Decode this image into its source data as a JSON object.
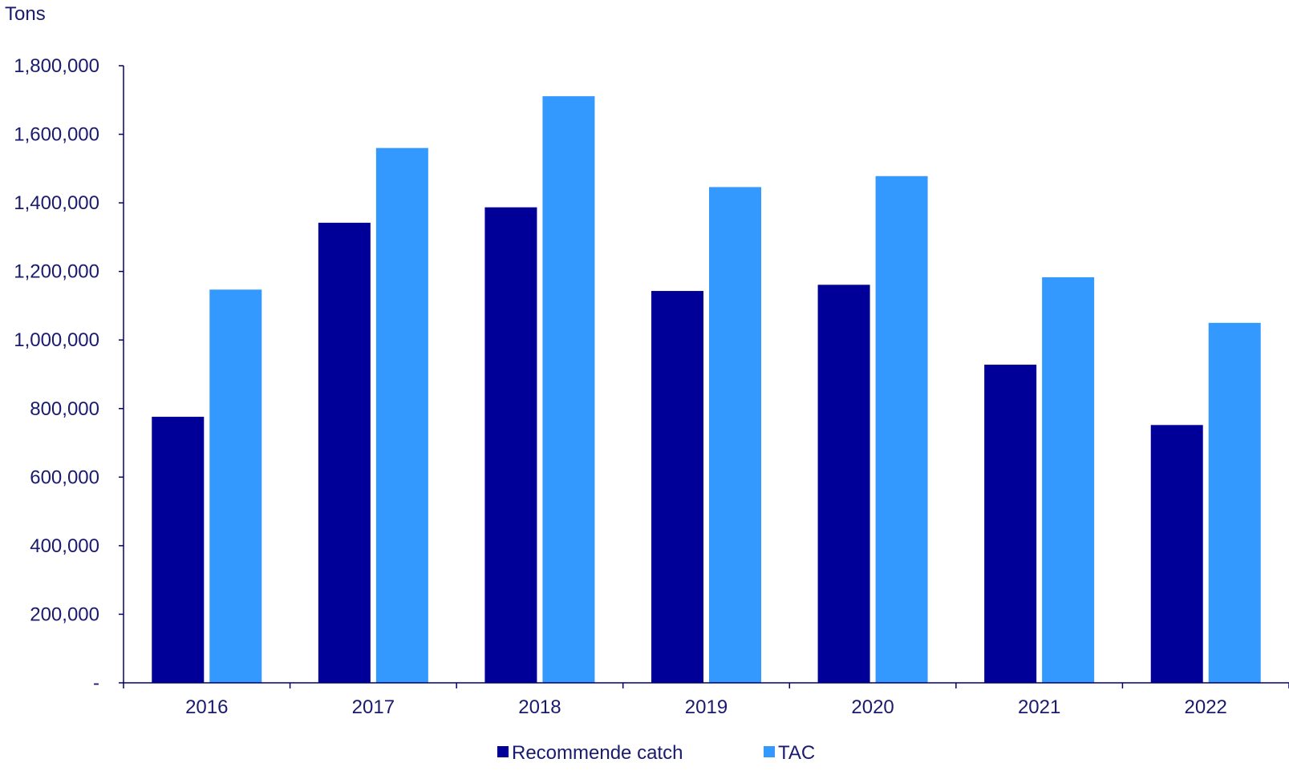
{
  "chart_data": {
    "type": "bar",
    "title": "",
    "xlabel": "",
    "ylabel": "Tons",
    "ylim": [
      0,
      1800000
    ],
    "yticks": [
      0,
      200000,
      400000,
      600000,
      800000,
      1000000,
      1200000,
      1400000,
      1600000,
      1800000
    ],
    "ytick_labels": [
      "-",
      "200,000",
      "400,000",
      "600,000",
      "800,000",
      "1,000,000",
      "1,200,000",
      "1,400,000",
      "1,600,000",
      "1,800,000"
    ],
    "categories": [
      "2016",
      "2017",
      "2018",
      "2019",
      "2020",
      "2021",
      "2022"
    ],
    "series": [
      {
        "name": "Recommende catch",
        "color": "#000099",
        "values": [
          776000,
          1342000,
          1387000,
          1143000,
          1161000,
          928000,
          752000
        ]
      },
      {
        "name": "TAC",
        "color": "#3399ff",
        "values": [
          1147000,
          1560000,
          1711000,
          1446000,
          1478000,
          1183000,
          1050000
        ]
      }
    ],
    "grid": false,
    "legend_position": "bottom",
    "text_color": "#1a1a6e",
    "axis_color": "#000066"
  }
}
